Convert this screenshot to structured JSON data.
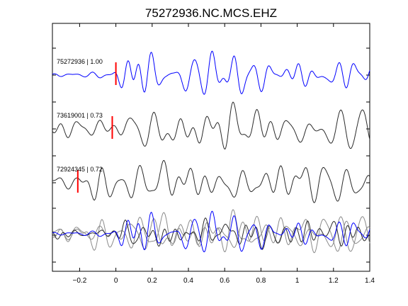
{
  "chart_data": {
    "type": "line",
    "title": "75272936.NC.MCS.EHZ",
    "xlabel": "",
    "ylabel": "",
    "xlim": [
      -0.35,
      1.4
    ],
    "xticks": [
      -0.2,
      0,
      0.2,
      0.4,
      0.6,
      0.8,
      1,
      1.2,
      1.4
    ],
    "xtick_labels": [
      "−0.2",
      "0",
      "0.2",
      "0.4",
      "0.6",
      "0.8",
      "1",
      "1.2",
      "1.4"
    ],
    "grid": false,
    "legend": "none",
    "traces": [
      {
        "label": "75272936 | 1.00",
        "color": "#0000ff",
        "pick_time": 0.0,
        "seed": 3,
        "amp": 0.85,
        "onset": -0.02,
        "pre_noise": 0.12
      },
      {
        "label": "73619001 | 0.73",
        "color": "#2a2a2a",
        "pick_time": -0.02,
        "seed": 11,
        "amp": 1.0,
        "onset": -0.03,
        "pre_noise": 0.35
      },
      {
        "label": "72924345 | 0.72",
        "color": "#2a2a2a",
        "pick_time": -0.21,
        "seed": 19,
        "amp": 1.0,
        "onset": -0.22,
        "pre_noise": 0.3
      }
    ],
    "stack": {
      "label": "overlay",
      "series": [
        {
          "color": "#8a8a8a",
          "seed": 19,
          "amp": 0.95,
          "onset": -0.22,
          "pre_noise": 0.3
        },
        {
          "color": "#8a8a8a",
          "seed": 11,
          "amp": 0.9,
          "onset": -0.03,
          "pre_noise": 0.35
        },
        {
          "color": "#2b2b2b",
          "seed": 27,
          "amp": 0.8,
          "onset": -0.02,
          "pre_noise": 0.25
        },
        {
          "color": "#0000ff",
          "seed": 3,
          "amp": 0.8,
          "onset": -0.02,
          "pre_noise": 0.12
        }
      ]
    },
    "pick_color": "#ff0000"
  }
}
